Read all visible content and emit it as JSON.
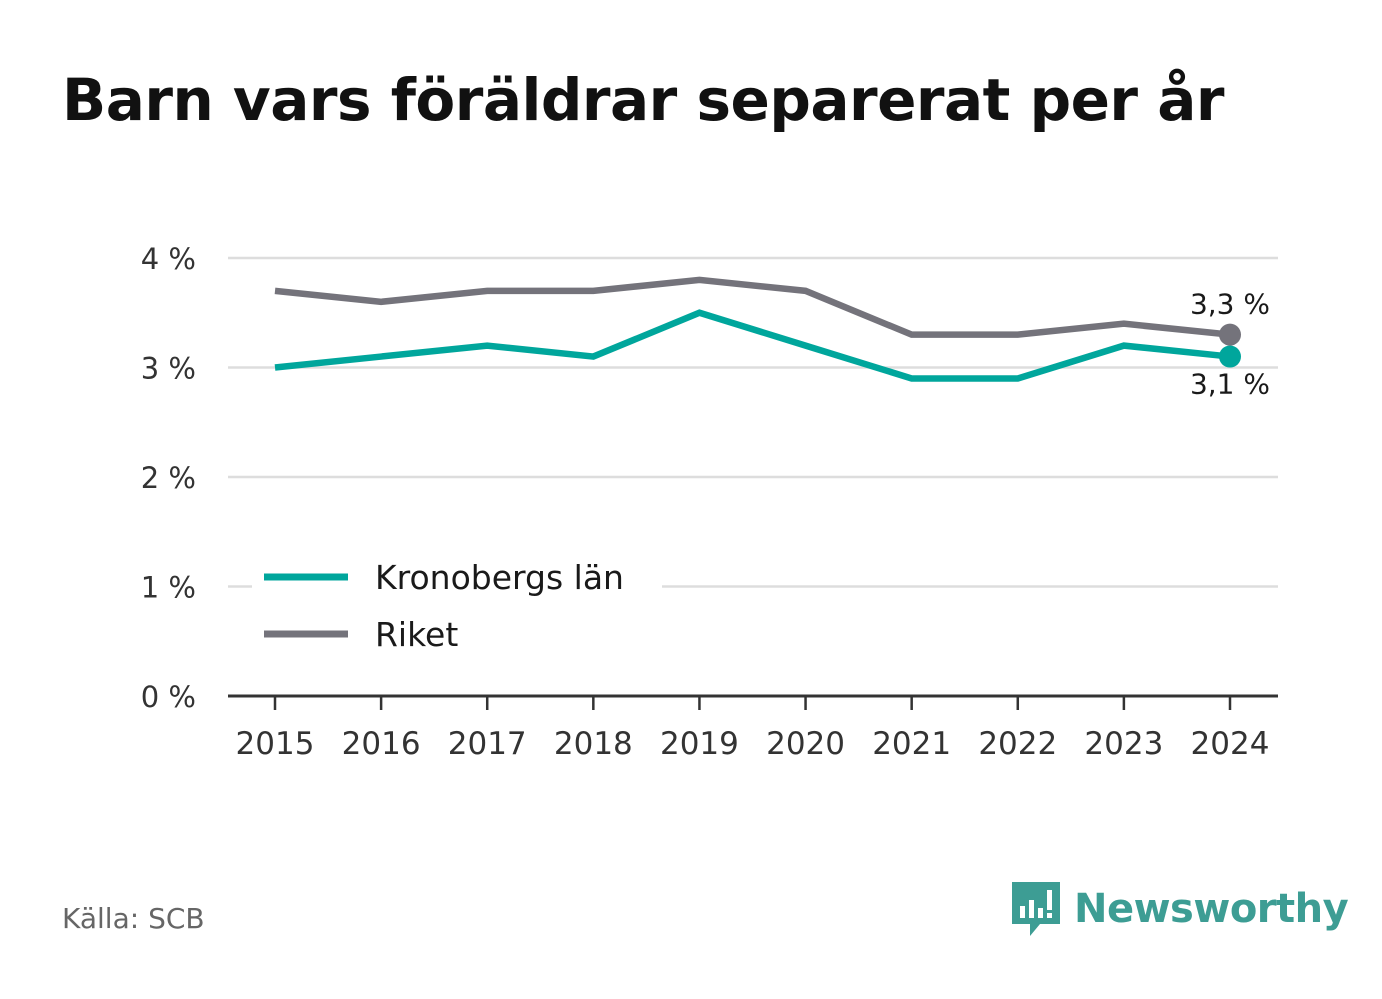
{
  "title": "Barn vars föräldrar separerat per år",
  "source": "Källa: SCB",
  "brand": {
    "name": "Newsworthy",
    "icon": "newsworthy-logo-icon",
    "color": "#3d9d94"
  },
  "colors": {
    "series_1": "#00a69c",
    "series_2": "#74737b",
    "grid": "#dddddd",
    "axis": "#333333"
  },
  "chart_data": {
    "type": "line",
    "x": [
      "2015",
      "2016",
      "2017",
      "2018",
      "2019",
      "2020",
      "2021",
      "2022",
      "2023",
      "2024"
    ],
    "series": [
      {
        "name": "Kronobergs län",
        "values": [
          3.0,
          3.1,
          3.2,
          3.1,
          3.5,
          3.2,
          2.9,
          2.9,
          3.2,
          3.1
        ],
        "end_label": "3,1 %"
      },
      {
        "name": "Riket",
        "values": [
          3.7,
          3.6,
          3.7,
          3.7,
          3.8,
          3.7,
          3.3,
          3.3,
          3.4,
          3.3
        ],
        "end_label": "3,3 %"
      }
    ],
    "ylim": [
      0,
      4
    ],
    "yticks": [
      0,
      1,
      2,
      3,
      4
    ],
    "ytick_labels": [
      "0 %",
      "1 %",
      "2 %",
      "3 %",
      "4 %"
    ],
    "grid": true,
    "legend_position": "bottom-left"
  }
}
